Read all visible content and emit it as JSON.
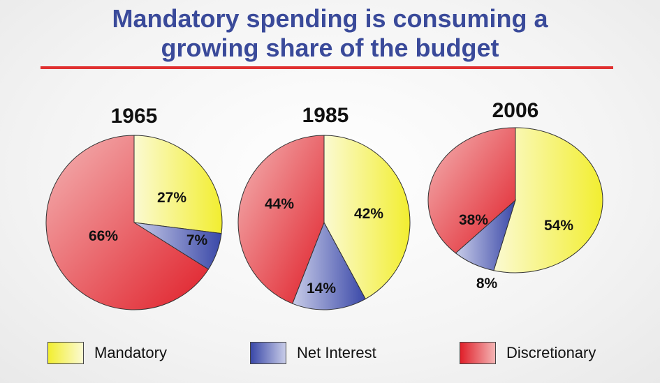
{
  "title_line1": "Mandatory spending is consuming a",
  "title_line2": "growing share of the budget",
  "colors": {
    "title": "#3a4a9a",
    "rule": "#e03030",
    "mandatory": "#f4f04a",
    "net_interest": "#4a58b0",
    "discretionary": "#e63a3a"
  },
  "legend": [
    {
      "key": "mandatory",
      "label": "Mandatory"
    },
    {
      "key": "net_interest",
      "label": "Net Interest"
    },
    {
      "key": "discretionary",
      "label": "Discretionary"
    }
  ],
  "chart_data": [
    {
      "type": "pie",
      "title": "1965",
      "slices": [
        {
          "key": "mandatory",
          "label": "27%",
          "value": 27
        },
        {
          "key": "net_interest",
          "label": "7%",
          "value": 7
        },
        {
          "key": "discretionary",
          "label": "66%",
          "value": 66
        }
      ]
    },
    {
      "type": "pie",
      "title": "1985",
      "slices": [
        {
          "key": "mandatory",
          "label": "42%",
          "value": 42
        },
        {
          "key": "net_interest",
          "label": "14%",
          "value": 14
        },
        {
          "key": "discretionary",
          "label": "44%",
          "value": 44
        }
      ]
    },
    {
      "type": "pie",
      "title": "2006",
      "slices": [
        {
          "key": "mandatory",
          "label": "54%",
          "value": 54
        },
        {
          "key": "net_interest",
          "label": "8%",
          "value": 8
        },
        {
          "key": "discretionary",
          "label": "38%",
          "value": 38
        }
      ]
    }
  ]
}
